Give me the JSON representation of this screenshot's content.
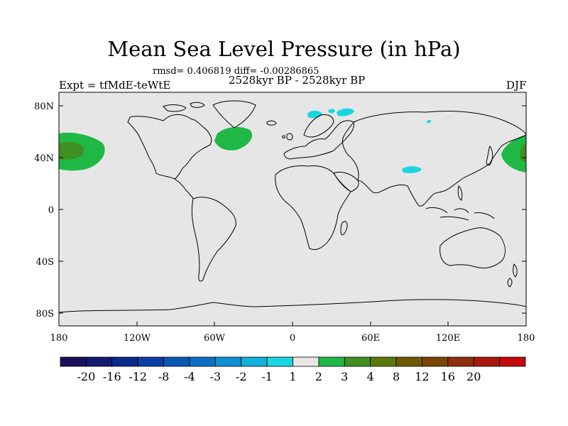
{
  "title": "Mean Sea Level Pressure (in hPa)",
  "stats": "rmsd= 0.406819 diff= -0.00286865",
  "experiment": "Expt = tfMdE-teWtE",
  "period": "2528kyr BP - 2528kyr BP",
  "season": "DJF",
  "lat_labels": [
    "80N",
    "40N",
    "0",
    "40S",
    "80S"
  ],
  "lon_labels": [
    "180",
    "120W",
    "60W",
    "0",
    "60E",
    "120E",
    "180"
  ],
  "colorbar": {
    "colors": [
      "#1c0f5c",
      "#121a72",
      "#0c2a8a",
      "#0a3fa3",
      "#0a56b4",
      "#0b70c4",
      "#0e8fd2",
      "#12b0dc",
      "#1ad6e0",
      "#e6e6e6",
      "#1fb845",
      "#3f8f22",
      "#5a7a0c",
      "#6e5a05",
      "#7a4408",
      "#8e300c",
      "#a8180c",
      "#c40a0a"
    ],
    "labels": [
      "-20",
      "-16",
      "-12",
      "-8",
      "-4",
      "-3",
      "-2",
      "-1",
      "1",
      "2",
      "3",
      "4",
      "8",
      "12",
      "16",
      "20"
    ]
  },
  "map_colors": {
    "background": "#e6e6e6",
    "positive_1_2": "#1fb845",
    "positive_2_3": "#3f8f22",
    "negative_1_2": "#1ad6e0"
  }
}
